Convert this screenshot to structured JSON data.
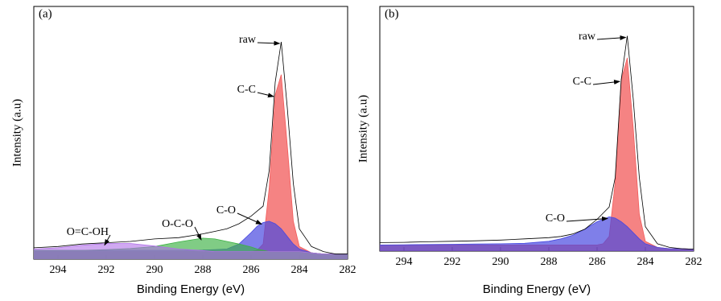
{
  "chart_data": [
    {
      "type": "area",
      "panel_label": "(a)",
      "xlabel": "Binding Energy (eV)",
      "ylabel": "Intensity (a.u)",
      "xlim": [
        295,
        282
      ],
      "xticks": [
        294,
        292,
        290,
        288,
        286,
        284,
        282
      ],
      "ylim": [
        0,
        100
      ],
      "x": [
        295,
        294,
        293,
        292,
        291,
        290,
        289,
        288,
        287.5,
        287,
        286.5,
        286,
        285.75,
        285.5,
        285.25,
        285,
        284.75,
        284.5,
        284.25,
        284,
        283.5,
        283,
        282.5,
        282
      ],
      "series": [
        {
          "name": "raw",
          "color": "#000000",
          "style": "line",
          "values": [
            4.5,
            5,
            6,
            6.5,
            7,
            8,
            8.5,
            10,
            11,
            12,
            14,
            17,
            19,
            21,
            35,
            70,
            86,
            60,
            30,
            12,
            5,
            3,
            2,
            2
          ]
        },
        {
          "name": "C-C",
          "color": "#f25a5a",
          "style": "area",
          "values": [
            3,
            3,
            3,
            3,
            3,
            3,
            3,
            3,
            3,
            3,
            3,
            3,
            3.5,
            6,
            28,
            65,
            73,
            45,
            15,
            5,
            2.5,
            2,
            2,
            2
          ]
        },
        {
          "name": "C-O",
          "color": "#4848e0",
          "style": "area",
          "values": [
            3.5,
            3.5,
            3.5,
            3.5,
            3.5,
            3.5,
            3.5,
            3.6,
            3.8,
            4,
            6,
            10.5,
            13,
            14.5,
            15,
            14,
            12,
            9,
            6,
            4,
            2.5,
            2,
            2,
            2
          ]
        },
        {
          "name": "O-C-O",
          "color": "#3cb043",
          "style": "area",
          "values": [
            3.5,
            3.5,
            3.5,
            3.8,
            4.2,
            5,
            6.8,
            8.3,
            8,
            7,
            6,
            4.8,
            4,
            3.5,
            3,
            3,
            3,
            3,
            3,
            3,
            2.5,
            2,
            2,
            2
          ]
        },
        {
          "name": "O=C-OH",
          "color": "#b070e8",
          "style": "area",
          "values": [
            4,
            4.5,
            5.5,
            6.2,
            6.2,
            5.2,
            4,
            3.4,
            3,
            3,
            3,
            3,
            3,
            3,
            3,
            3,
            3,
            3,
            3,
            3,
            2.5,
            2,
            2,
            2
          ]
        }
      ]
    },
    {
      "type": "area",
      "panel_label": "(b)",
      "xlabel": "Binding Energy (eV)",
      "ylabel": "Intensity (a.u)",
      "xlim": [
        295,
        282
      ],
      "xticks": [
        294,
        292,
        290,
        288,
        286,
        284,
        282
      ],
      "ylim": [
        0,
        100
      ],
      "x": [
        295,
        294,
        293,
        292,
        291,
        290,
        289,
        288,
        287.5,
        287,
        286.5,
        286,
        285.75,
        285.5,
        285.25,
        285,
        284.75,
        284.5,
        284.25,
        284,
        283.5,
        283,
        282.5,
        282
      ],
      "series": [
        {
          "name": "raw",
          "color": "#000000",
          "style": "line",
          "values": [
            3.5,
            3.6,
            3.8,
            4,
            4.2,
            4.5,
            5,
            5.5,
            6,
            7,
            9,
            13,
            15.5,
            18,
            30,
            70,
            88,
            62,
            30,
            10,
            3,
            1.5,
            1,
            0.8
          ]
        },
        {
          "name": "C-C",
          "color": "#f25a5a",
          "style": "area",
          "values": [
            2.5,
            2.5,
            2.5,
            2.5,
            2.5,
            2.5,
            2.5,
            2.5,
            2.5,
            2.5,
            2.5,
            2.5,
            3,
            6,
            28,
            70,
            79,
            50,
            15,
            4,
            1.5,
            1,
            1,
            0.8
          ]
        },
        {
          "name": "C-O",
          "color": "#4848e0",
          "style": "area",
          "values": [
            2.5,
            2.6,
            2.7,
            2.8,
            2.9,
            3,
            3.2,
            4,
            5,
            6.5,
            9,
            12,
            13,
            14,
            13.5,
            12,
            10,
            7.5,
            5,
            3,
            1.5,
            1,
            1,
            0.8
          ]
        }
      ]
    }
  ]
}
